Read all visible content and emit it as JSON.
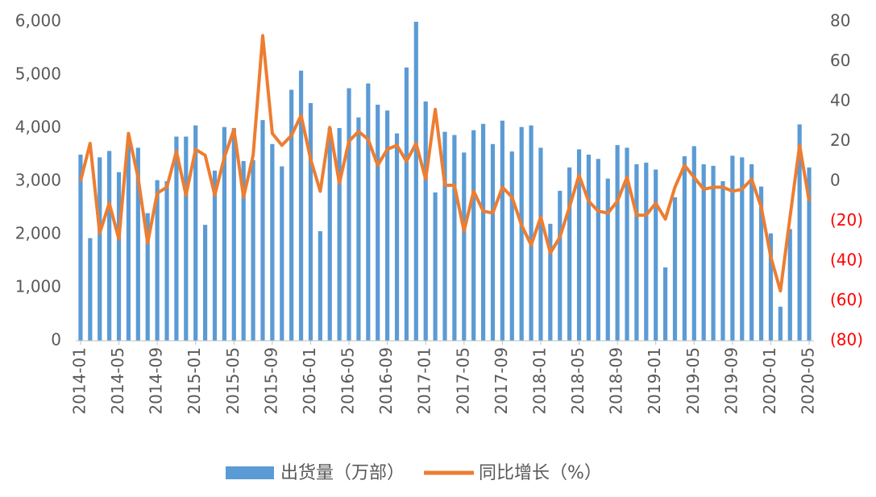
{
  "chart_data": {
    "type": "bar_line",
    "categories": [
      "2014-01",
      null,
      null,
      null,
      "2014-05",
      null,
      null,
      null,
      "2014-09",
      null,
      null,
      null,
      "2015-01",
      null,
      null,
      null,
      "2015-05",
      null,
      null,
      null,
      "2015-09",
      null,
      null,
      null,
      "2016-01",
      null,
      null,
      null,
      "2016-05",
      null,
      null,
      null,
      "2016-09",
      null,
      null,
      null,
      "2017-01",
      null,
      null,
      null,
      "2017-05",
      null,
      null,
      null,
      "2017-09",
      null,
      null,
      null,
      "2018-01",
      null,
      null,
      null,
      "2018-05",
      null,
      null,
      null,
      "2018-09",
      null,
      null,
      null,
      "2019-01",
      null,
      null,
      null,
      "2019-05",
      null,
      null,
      null,
      "2019-09",
      null,
      null,
      null,
      "2020-01",
      null,
      null,
      null,
      "2020-05"
    ],
    "series": [
      {
        "name": "出货量（万部）",
        "type": "bar",
        "color": "#5b9bd5",
        "axis": "y",
        "values": [
          3500,
          1930,
          3450,
          3570,
          3170,
          3700,
          3630,
          2400,
          3020,
          3000,
          3840,
          3840,
          4050,
          2180,
          3200,
          4020,
          4000,
          3380,
          3400,
          4150,
          3700,
          3280,
          4720,
          5080,
          4470,
          2060,
          4000,
          4000,
          4750,
          4200,
          4840,
          4440,
          4330,
          3900,
          5140,
          6000,
          4500,
          2790,
          3930,
          3870,
          3540,
          3960,
          4080,
          3700,
          4140,
          3560,
          4020,
          4050,
          3630,
          2200,
          2820,
          3260,
          3600,
          3500,
          3420,
          3050,
          3680,
          3630,
          3320,
          3350,
          3220,
          1380,
          2700,
          3470,
          3660,
          3320,
          3290,
          3000,
          3480,
          3450,
          3320,
          2900,
          2020,
          640,
          2100,
          4070,
          3260
        ]
      },
      {
        "name": "同比增长（%）",
        "type": "line",
        "color": "#ed7d31",
        "axis": "y2",
        "values": [
          0,
          19,
          -26,
          -11,
          -29,
          24,
          2,
          -31,
          -6,
          -3,
          15,
          -7,
          16,
          13,
          -7,
          12,
          26,
          -8,
          13,
          73,
          24,
          18,
          23,
          33,
          11,
          -5,
          27,
          -1,
          20,
          25,
          21,
          8,
          16,
          18,
          10,
          19,
          1,
          36,
          -2,
          -2,
          -25,
          -5,
          -15,
          -16,
          -3,
          -8,
          -22,
          -32,
          -18,
          -36,
          -28,
          -13,
          3,
          -10,
          -15,
          -16,
          -10,
          2,
          -17,
          -17,
          -11,
          -19,
          -3,
          8,
          2,
          -4,
          -3,
          -3,
          -5,
          -4,
          1,
          -13,
          -38,
          -55,
          -18,
          18,
          -10
        ]
      }
    ],
    "ylim": [
      0,
      6000
    ],
    "yticks": [
      0,
      {
        "value": 1000,
        "label": "1,000"
      },
      {
        "value": 2000,
        "label": "2,000"
      },
      {
        "value": 3000,
        "label": "3,000"
      },
      {
        "value": 4000,
        "label": "4,000"
      },
      {
        "value": 5000,
        "label": "5,000"
      },
      {
        "value": 6000,
        "label": "6,000"
      }
    ],
    "y2lim": [
      -80,
      80
    ],
    "y2ticks": [
      {
        "value": -80,
        "label": "(80)"
      },
      {
        "value": -60,
        "label": "(60)"
      },
      {
        "value": -40,
        "label": "(40)"
      },
      {
        "value": -20,
        "label": "(20)"
      },
      0,
      20,
      40,
      60,
      80
    ],
    "y2_negative_label_color": "#ff0000",
    "grid": false,
    "legend": "bottom"
  }
}
